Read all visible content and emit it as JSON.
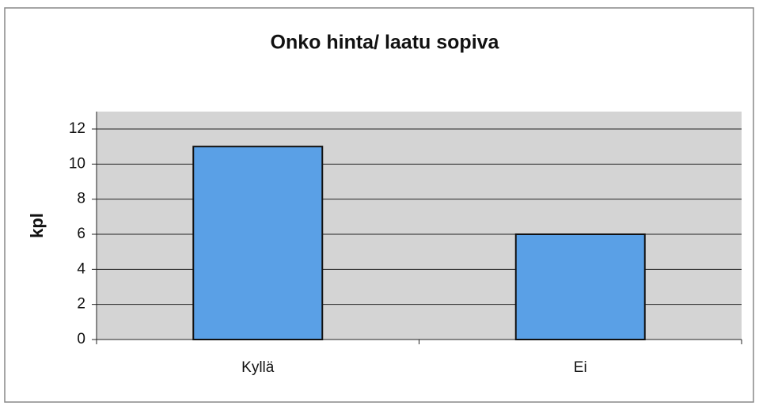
{
  "chart_data": {
    "type": "bar",
    "title": "Onko hinta/ laatu sopiva",
    "ylabel": "kpl",
    "categories": [
      "Kyllä",
      "Ei"
    ],
    "values": [
      11,
      6
    ],
    "color": "#5aa0e6",
    "ylim": [
      0,
      12
    ],
    "yticks": [
      0,
      2,
      4,
      6,
      8,
      10,
      12
    ],
    "grid": true
  }
}
